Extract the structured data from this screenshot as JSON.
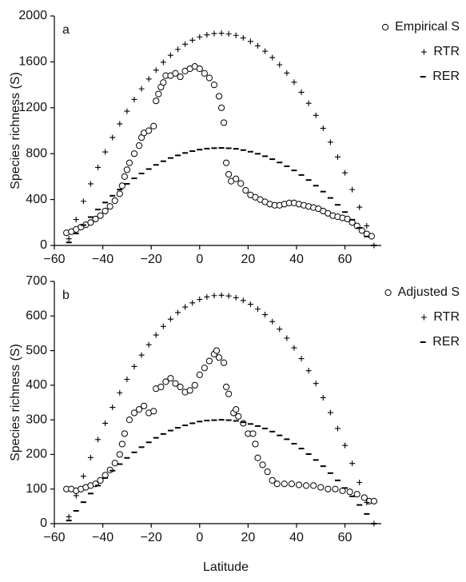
{
  "chart_data": [
    {
      "type": "scatter",
      "panel_label": "a",
      "y_label": "Species richness (S)",
      "xlim": [
        -60,
        75
      ],
      "ylim": [
        0,
        2000
      ],
      "xticks": [
        {
          "value": -60,
          "label": "−60"
        },
        {
          "value": -40,
          "label": "−40"
        },
        {
          "value": -20,
          "label": "−20"
        },
        0,
        20,
        40,
        60
      ],
      "yticks": [
        0,
        400,
        800,
        1200,
        1600,
        2000
      ],
      "series": [
        {
          "name": "Empirical S",
          "marker": "circle",
          "color": "#000000",
          "x": [
            -55,
            -53,
            -51,
            -49,
            -47,
            -45,
            -43,
            -41,
            -39,
            -37,
            -35,
            -33,
            -32,
            -31,
            -30,
            -29,
            -27,
            -25,
            -24,
            -23,
            -21,
            -19,
            -18,
            -17,
            -16,
            -15,
            -14,
            -12,
            -10,
            -8,
            -6,
            -4,
            -2,
            0,
            2,
            4,
            6,
            8,
            9,
            10,
            11,
            12,
            13,
            15,
            17,
            19,
            21,
            23,
            25,
            27,
            29,
            31,
            33,
            35,
            37,
            39,
            41,
            43,
            45,
            47,
            49,
            51,
            53,
            55,
            57,
            59,
            61,
            63,
            65,
            67,
            69,
            71
          ],
          "values": [
            110,
            120,
            140,
            160,
            180,
            200,
            230,
            260,
            300,
            340,
            390,
            450,
            520,
            600,
            660,
            720,
            800,
            870,
            940,
            980,
            1000,
            1040,
            1260,
            1320,
            1380,
            1420,
            1480,
            1480,
            1500,
            1470,
            1520,
            1540,
            1560,
            1540,
            1500,
            1460,
            1400,
            1300,
            1200,
            1070,
            720,
            620,
            560,
            580,
            540,
            480,
            440,
            420,
            400,
            380,
            360,
            350,
            350,
            360,
            370,
            370,
            360,
            350,
            340,
            330,
            320,
            300,
            280,
            260,
            250,
            240,
            230,
            200,
            170,
            130,
            100,
            80
          ]
        },
        {
          "name": "RTR",
          "marker": "plus",
          "color": "#000000",
          "x": [
            -54,
            -51,
            -48,
            -45,
            -42,
            -39,
            -36,
            -33,
            -30,
            -27,
            -24,
            -21,
            -18,
            -15,
            -12,
            -9,
            -6,
            -3,
            0,
            3,
            6,
            9,
            12,
            15,
            18,
            21,
            24,
            27,
            30,
            33,
            36,
            39,
            42,
            45,
            48,
            51,
            54,
            57,
            60,
            63,
            66,
            69,
            72
          ],
          "values": [
            58,
            226,
            385,
            537,
            680,
            815,
            941,
            1060,
            1170,
            1272,
            1365,
            1451,
            1528,
            1597,
            1657,
            1709,
            1754,
            1789,
            1817,
            1836,
            1847,
            1850,
            1844,
            1831,
            1809,
            1778,
            1740,
            1693,
            1638,
            1575,
            1503,
            1423,
            1335,
            1239,
            1134,
            1021,
            900,
            771,
            633,
            487,
            333,
            171,
            0
          ]
        },
        {
          "name": "RER",
          "marker": "dash",
          "color": "#000000",
          "x": [
            -54,
            -51,
            -48,
            -45,
            -42,
            -39,
            -36,
            -33,
            -30,
            -27,
            -24,
            -21,
            -18,
            -15,
            -12,
            -9,
            -6,
            -3,
            0,
            3,
            6,
            9,
            12,
            15,
            18,
            21,
            24,
            27,
            30,
            33,
            36,
            39,
            42,
            45,
            48,
            51,
            54,
            57,
            60,
            63,
            66,
            69,
            72
          ],
          "values": [
            26,
            104,
            177,
            247,
            313,
            374,
            433,
            487,
            537,
            585,
            627,
            666,
            702,
            734,
            762,
            785,
            806,
            822,
            835,
            844,
            848,
            850,
            847,
            842,
            831,
            817,
            799,
            778,
            752,
            723,
            690,
            654,
            614,
            570,
            521,
            469,
            414,
            354,
            291,
            224,
            153,
            78,
            0
          ]
        }
      ]
    },
    {
      "type": "scatter",
      "panel_label": "b",
      "y_label": "Species richness (S)",
      "x_label": "Latitude",
      "xlim": [
        -60,
        75
      ],
      "ylim": [
        0,
        700
      ],
      "xticks": [
        {
          "value": -60,
          "label": "−60"
        },
        {
          "value": -40,
          "label": "−40"
        },
        {
          "value": -20,
          "label": "−20"
        },
        0,
        20,
        40,
        60
      ],
      "yticks": [
        0,
        100,
        200,
        300,
        400,
        500,
        600,
        700
      ],
      "series": [
        {
          "name": "Adjusted S",
          "marker": "circle",
          "color": "#000000",
          "x": [
            -55,
            -53,
            -51,
            -49,
            -47,
            -45,
            -43,
            -41,
            -39,
            -37,
            -35,
            -33,
            -32,
            -31,
            -29,
            -27,
            -25,
            -23,
            -21,
            -19,
            -18,
            -16,
            -14,
            -12,
            -10,
            -8,
            -6,
            -4,
            -2,
            0,
            2,
            4,
            6,
            7,
            8,
            10,
            11,
            12,
            14,
            15,
            16,
            18,
            20,
            22,
            23,
            24,
            26,
            28,
            30,
            32,
            35,
            38,
            41,
            44,
            47,
            50,
            53,
            56,
            59,
            62,
            65,
            68,
            70,
            72
          ],
          "values": [
            100,
            100,
            95,
            100,
            105,
            110,
            115,
            125,
            140,
            155,
            175,
            200,
            230,
            260,
            300,
            320,
            330,
            340,
            320,
            325,
            390,
            395,
            410,
            420,
            405,
            395,
            380,
            385,
            400,
            430,
            450,
            470,
            490,
            500,
            480,
            465,
            395,
            375,
            320,
            330,
            310,
            290,
            260,
            260,
            230,
            190,
            170,
            150,
            125,
            115,
            115,
            115,
            112,
            110,
            110,
            105,
            100,
            100,
            95,
            92,
            85,
            75,
            65,
            65
          ]
        },
        {
          "name": "RTR",
          "marker": "plus",
          "color": "#000000",
          "x": [
            -54,
            -51,
            -48,
            -45,
            -42,
            -39,
            -36,
            -33,
            -30,
            -27,
            -24,
            -21,
            -18,
            -15,
            -12,
            -9,
            -6,
            -3,
            0,
            3,
            6,
            9,
            12,
            15,
            18,
            21,
            24,
            27,
            30,
            33,
            36,
            39,
            42,
            45,
            48,
            51,
            54,
            57,
            60,
            63,
            66,
            69,
            72
          ],
          "values": [
            20,
            81,
            137,
            191,
            243,
            290,
            336,
            378,
            417,
            454,
            487,
            517,
            545,
            570,
            591,
            610,
            626,
            638,
            648,
            655,
            659,
            660,
            658,
            653,
            645,
            634,
            620,
            604,
            584,
            562,
            536,
            508,
            477,
            442,
            405,
            364,
            321,
            275,
            226,
            174,
            119,
            61,
            0
          ]
        },
        {
          "name": "RER",
          "marker": "dash",
          "color": "#000000",
          "x": [
            -54,
            -51,
            -48,
            -45,
            -42,
            -39,
            -36,
            -33,
            -30,
            -27,
            -24,
            -21,
            -18,
            -15,
            -12,
            -9,
            -6,
            -3,
            0,
            3,
            6,
            9,
            12,
            15,
            18,
            21,
            24,
            27,
            30,
            33,
            36,
            39,
            42,
            45,
            48,
            51,
            54,
            57,
            60,
            63,
            66,
            69,
            72
          ],
          "values": [
            9,
            37,
            62,
            87,
            110,
            132,
            153,
            172,
            190,
            206,
            221,
            235,
            248,
            259,
            269,
            277,
            284,
            290,
            295,
            298,
            299,
            300,
            299,
            297,
            293,
            288,
            282,
            275,
            266,
            255,
            244,
            231,
            217,
            201,
            184,
            166,
            146,
            125,
            103,
            79,
            54,
            28,
            0
          ]
        }
      ]
    }
  ]
}
